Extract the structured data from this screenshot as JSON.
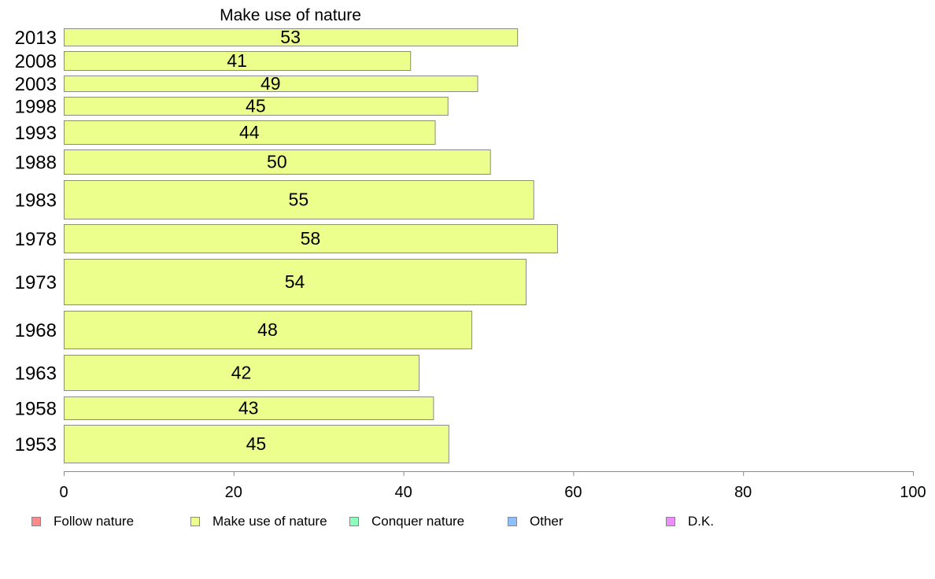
{
  "chart_data": {
    "type": "bar",
    "orientation": "horizontal",
    "title": "Make use of nature",
    "categories": [
      "2013",
      "2008",
      "2003",
      "1998",
      "1993",
      "1988",
      "1983",
      "1978",
      "1973",
      "1968",
      "1963",
      "1958",
      "1953"
    ],
    "series": [
      {
        "name": "Make use of nature",
        "values": [
          53.4,
          40.8,
          48.7,
          45.2,
          43.7,
          50.2,
          55.3,
          58.1,
          54.4,
          48.0,
          41.8,
          43.5,
          45.3
        ]
      }
    ],
    "data_labels": [
      "53",
      "41",
      "49",
      "45",
      "44",
      "50",
      "55",
      "58",
      "54",
      "48",
      "42",
      "43",
      "45"
    ],
    "xlim": [
      0,
      100
    ],
    "x_ticks": [
      "0",
      "20",
      "40",
      "60",
      "80",
      "100"
    ],
    "xlabel": "",
    "ylabel": "",
    "grid": false,
    "bar_color": "#ecff8c",
    "bar_border": "#8a8a8a",
    "legend_position": "bottom",
    "legend": [
      {
        "label": "Follow nature",
        "color": "#ff8c8c"
      },
      {
        "label": "Make use of nature",
        "color": "#ecff8c"
      },
      {
        "label": "Conquer nature",
        "color": "#8cffbf"
      },
      {
        "label": "Other",
        "color": "#8cbfff"
      },
      {
        "label": "D.K.",
        "color": "#ec8cff"
      }
    ]
  }
}
